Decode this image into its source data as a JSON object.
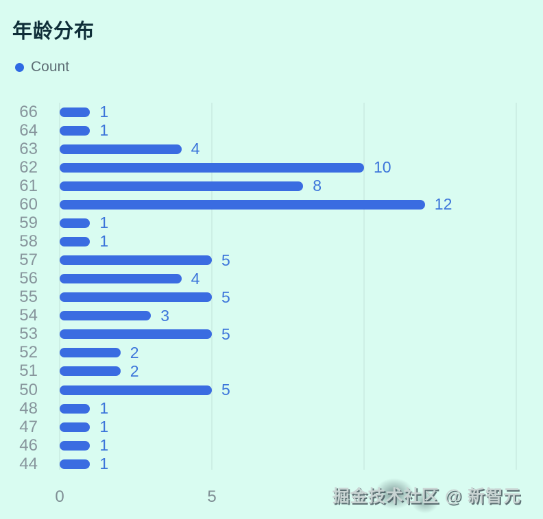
{
  "chart": {
    "legend_label": "Count"
  },
  "chart_data": {
    "type": "bar",
    "orientation": "horizontal",
    "title": "年龄分布",
    "legend": [
      "Count"
    ],
    "legend_position": "top-left",
    "categories": [
      "66",
      "64",
      "63",
      "62",
      "61",
      "60",
      "59",
      "58",
      "57",
      "56",
      "55",
      "54",
      "53",
      "52",
      "51",
      "50",
      "48",
      "47",
      "46",
      "44"
    ],
    "values": [
      1,
      1,
      4,
      10,
      8,
      12,
      1,
      1,
      5,
      4,
      5,
      3,
      5,
      2,
      2,
      5,
      1,
      1,
      1,
      1
    ],
    "xlabel": "",
    "ylabel": "",
    "xlim": [
      0,
      15
    ],
    "x_ticks_visible": [
      "0",
      "5"
    ],
    "gridline_values": [
      0,
      5,
      10,
      15
    ],
    "grid": true,
    "data_labels": true
  },
  "watermark": {
    "text": "掘金技术社区 @ 新智元"
  },
  "colors": {
    "background": "#d9fcf1",
    "bar": "#3a6ce1",
    "legend_dot": "#2f6ae3",
    "value_label": "#3b74da",
    "category_label": "#87959c",
    "axis_label": "#7f8e94",
    "title": "#0f2e38",
    "legend_text": "#5d6d74",
    "gridline": "#c2e4da"
  }
}
